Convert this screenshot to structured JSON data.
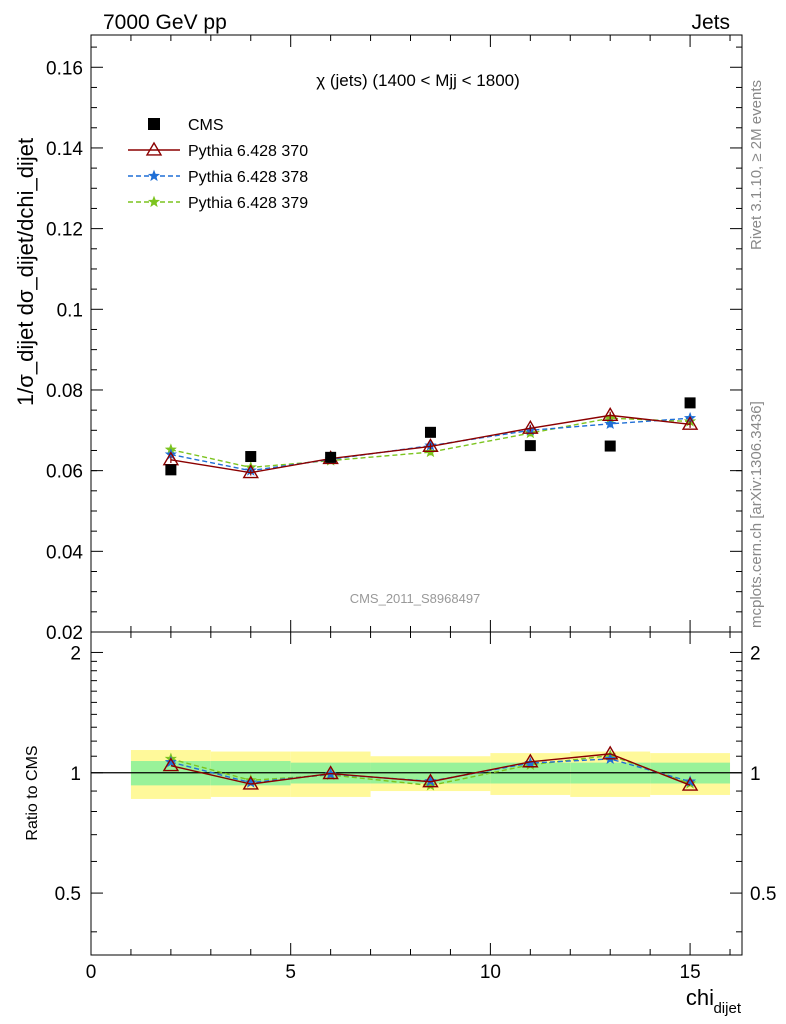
{
  "header": {
    "left": "7000 GeV pp",
    "right": "Jets"
  },
  "side_labels": {
    "rivet": "Rivet 3.1.10, ≥ 2M events",
    "mcplots": "mcplots.cern.ch [arXiv:1306.3436]"
  },
  "chart_data": {
    "type": "scatter",
    "title": "χ (jets) (1400 < Mjj < 1800)",
    "analysis_label": "CMS_2011_S8968497",
    "xlabel": "chi",
    "xlabel_sub": "dijet",
    "ylabel": "1/σ_dijet dσ_dijet/dchi_dijet",
    "ratio_ylabel": "Ratio to CMS",
    "xlim": [
      0,
      16.3
    ],
    "ylim": [
      0.02,
      0.168
    ],
    "ratio_ylim": [
      0.35,
      2.25
    ],
    "ratio_scale": "log",
    "x_ticks": [
      "0",
      "5",
      "10",
      "15"
    ],
    "y_ticks": [
      "0.02",
      "0.04",
      "0.06",
      "0.08",
      "0.1",
      "0.12",
      "0.14",
      "0.16"
    ],
    "ratio_ticks": [
      "0.5",
      "1",
      "2"
    ],
    "legend_position": "top-left",
    "bins": [
      [
        1,
        3
      ],
      [
        3,
        5
      ],
      [
        5,
        7
      ],
      [
        7,
        10
      ],
      [
        10,
        12
      ],
      [
        12,
        14
      ],
      [
        14,
        16
      ]
    ],
    "x": [
      2,
      4,
      6,
      8.5,
      11,
      13,
      15
    ],
    "data": {
      "name": "CMS",
      "values": [
        0.0602,
        0.0635,
        0.0633,
        0.0695,
        0.0662,
        0.0661,
        0.0768
      ],
      "band_inner_rel": [
        0.07,
        0.07,
        0.06,
        0.06,
        0.06,
        0.06,
        0.06
      ],
      "band_outer_rel": [
        0.14,
        0.13,
        0.13,
        0.1,
        0.12,
        0.13,
        0.12
      ],
      "color": "#000000"
    },
    "series": [
      {
        "name": "Pythia 6.428 370",
        "values": [
          0.0627,
          0.0595,
          0.063,
          0.066,
          0.0705,
          0.0737,
          0.0715
        ],
        "errors": [
          0.0008,
          0.0007,
          0.0007,
          0.0008,
          0.0008,
          0.0009,
          0.0009
        ],
        "color": "#8b0000",
        "marker": "open-triangle",
        "dash": "solid"
      },
      {
        "name": "Pythia 6.428 378",
        "values": [
          0.064,
          0.06,
          0.0628,
          0.0662,
          0.07,
          0.0716,
          0.073
        ],
        "errors": [
          0.0008,
          0.0007,
          0.0007,
          0.0008,
          0.0008,
          0.0009,
          0.0012
        ],
        "color": "#1f6fd6",
        "marker": "star",
        "dash": "dashed"
      },
      {
        "name": "Pythia 6.428 379",
        "values": [
          0.0652,
          0.0608,
          0.0625,
          0.0646,
          0.0693,
          0.073,
          0.0722
        ],
        "errors": [
          0.0008,
          0.0007,
          0.0007,
          0.0008,
          0.0008,
          0.0009,
          0.0009
        ],
        "color": "#7cc41f",
        "marker": "star",
        "dash": "dashed"
      }
    ],
    "band_colors": {
      "inner": "#99f299",
      "outer": "#fff99a"
    }
  }
}
